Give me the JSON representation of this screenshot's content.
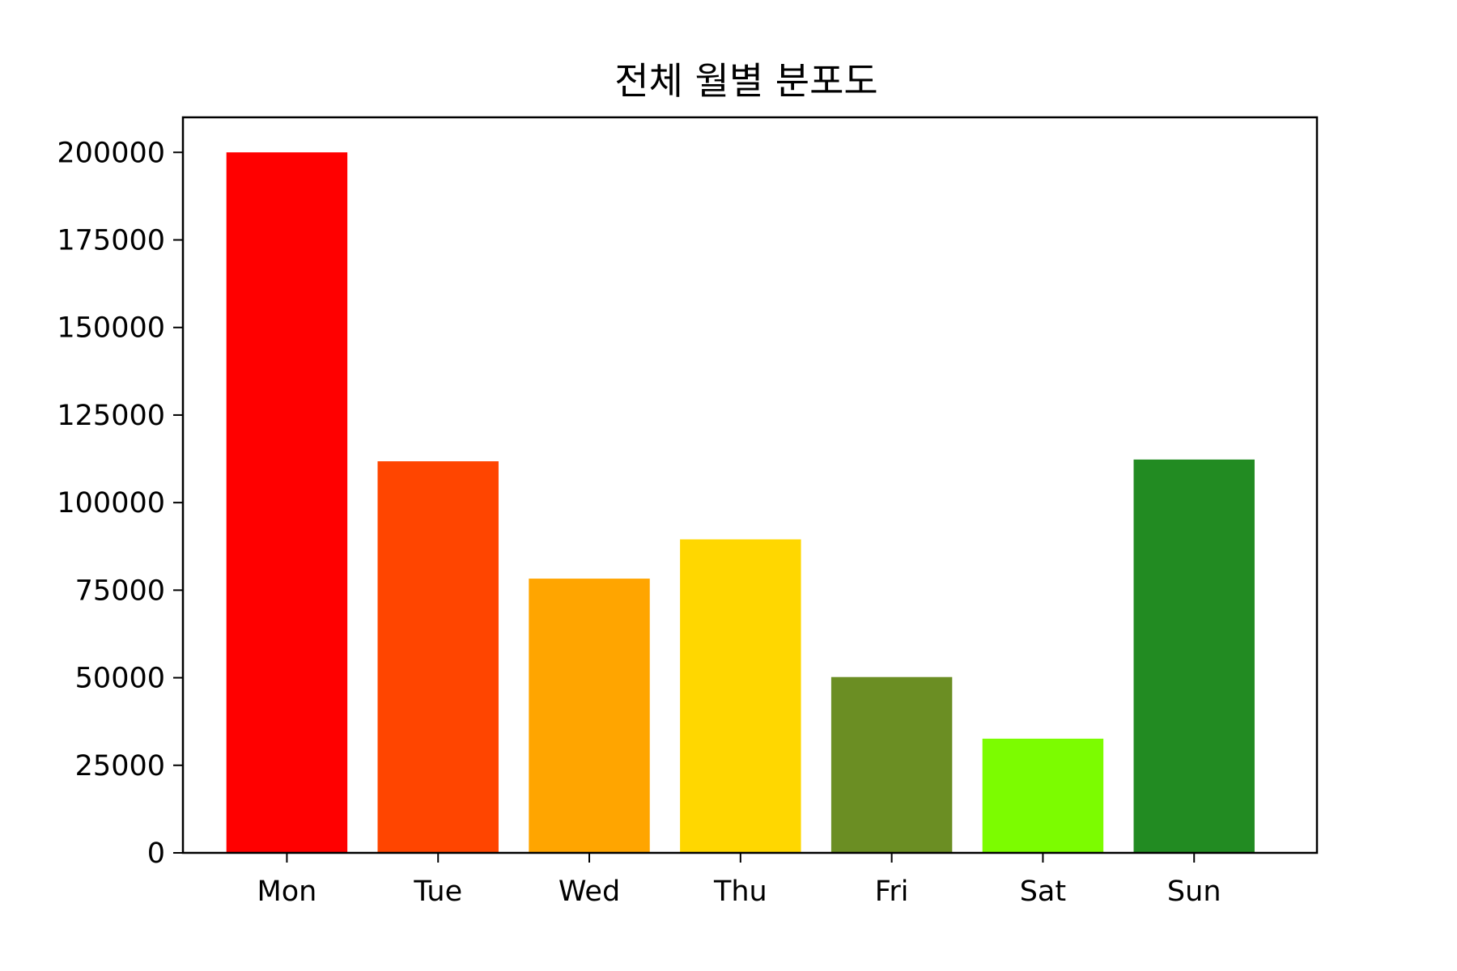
{
  "chart_data": {
    "type": "bar",
    "title": "전체 월별 분포도",
    "xlabel": "",
    "ylabel": "",
    "categories": [
      "Mon",
      "Tue",
      "Wed",
      "Thu",
      "Fri",
      "Sat",
      "Sun"
    ],
    "values": [
      200000,
      111800,
      78300,
      89500,
      50200,
      32600,
      112300
    ],
    "colors": [
      "#ff0000",
      "#ff4500",
      "#ffa500",
      "#ffd700",
      "#6b8e23",
      "#7cfc00",
      "#228b22"
    ],
    "ylim": [
      0,
      210000
    ],
    "yticks": [
      0,
      25000,
      50000,
      75000,
      100000,
      125000,
      150000,
      175000,
      200000
    ],
    "ytick_labels": [
      "0",
      "25000",
      "50000",
      "75000",
      "100000",
      "125000",
      "150000",
      "175000",
      "200000"
    ],
    "grid": false,
    "legend": "none"
  }
}
